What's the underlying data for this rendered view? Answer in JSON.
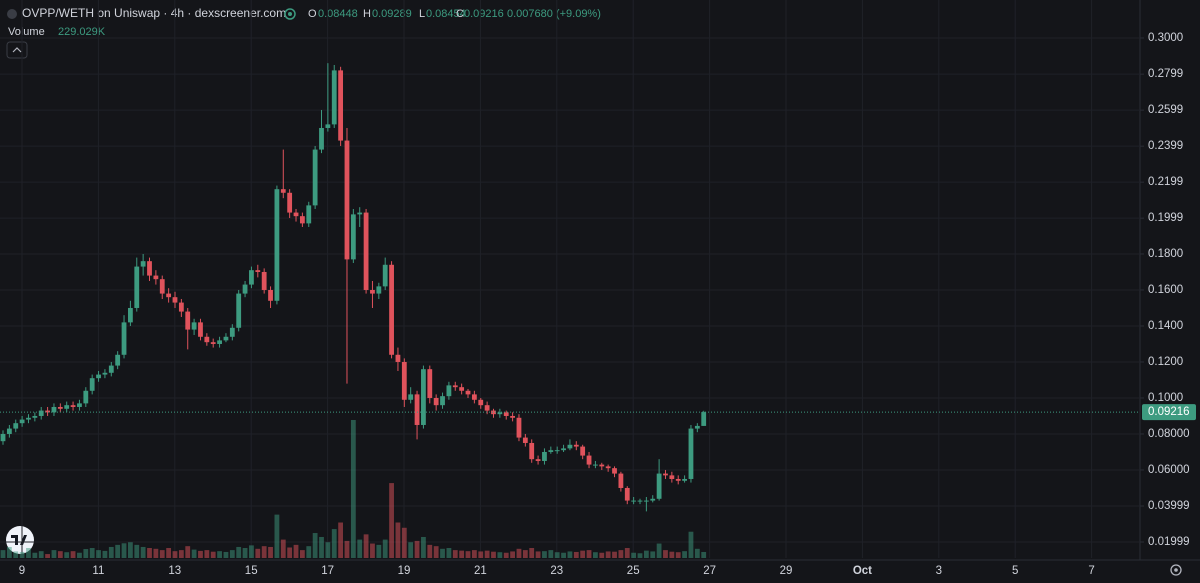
{
  "chart_data": {
    "type": "candlestick",
    "title": "OVPP/WETH on Uniswap · 4h · dexscreener.com",
    "ohlc_labels": [
      "O",
      "H",
      "L",
      "C"
    ],
    "change_label": "0.007680 (+9.09%)",
    "volume_title": "Volume",
    "volume_label": "229.029K",
    "up_color": "#3d9b80",
    "down_color": "#e0535c",
    "ylim": [
      0.0111,
      0.3211
    ],
    "yticks": [
      {
        "value": 0.3,
        "label": "0.3000"
      },
      0.2799,
      0.2599,
      0.2399,
      0.2199,
      0.1999,
      {
        "value": 0.18,
        "label": "0.1800"
      },
      {
        "value": 0.16,
        "label": "0.1600"
      },
      {
        "value": 0.14,
        "label": "0.1400"
      },
      {
        "value": 0.12,
        "label": "0.1200"
      },
      {
        "value": 0.1,
        "label": "0.1000"
      },
      {
        "value": 0.08,
        "label": "0.08000"
      },
      {
        "value": 0.06,
        "label": "0.06000"
      },
      0.03999,
      0.01999
    ],
    "grid": true,
    "x_labels": [
      "9",
      "11",
      "13",
      "15",
      "17",
      "19",
      "21",
      "23",
      "25",
      "27",
      "29",
      "Oct",
      "3",
      "5",
      "7"
    ],
    "candles": [
      [
        0.076,
        0.082,
        0.074,
        0.08
      ],
      [
        0.08,
        0.085,
        0.078,
        0.083
      ],
      [
        0.083,
        0.088,
        0.081,
        0.086
      ],
      [
        0.086,
        0.09,
        0.084,
        0.088
      ],
      [
        0.088,
        0.091,
        0.086,
        0.089
      ],
      [
        0.089,
        0.092,
        0.087,
        0.09
      ],
      [
        0.09,
        0.095,
        0.088,
        0.093
      ],
      [
        0.093,
        0.095,
        0.09,
        0.092
      ],
      [
        0.092,
        0.097,
        0.09,
        0.095
      ],
      [
        0.095,
        0.097,
        0.092,
        0.094
      ],
      [
        0.094,
        0.098,
        0.092,
        0.096
      ],
      [
        0.096,
        0.098,
        0.093,
        0.095
      ],
      [
        0.095,
        0.099,
        0.093,
        0.097
      ],
      [
        0.097,
        0.106,
        0.095,
        0.104
      ],
      [
        0.104,
        0.113,
        0.102,
        0.111
      ],
      [
        0.111,
        0.115,
        0.109,
        0.113
      ],
      [
        0.113,
        0.116,
        0.111,
        0.114
      ],
      [
        0.114,
        0.12,
        0.112,
        0.118
      ],
      [
        0.118,
        0.126,
        0.116,
        0.124
      ],
      [
        0.124,
        0.146,
        0.122,
        0.142
      ],
      [
        0.142,
        0.154,
        0.14,
        0.15
      ],
      [
        0.15,
        0.178,
        0.148,
        0.173
      ],
      [
        0.173,
        0.18,
        0.168,
        0.176
      ],
      [
        0.176,
        0.178,
        0.165,
        0.168
      ],
      [
        0.168,
        0.171,
        0.163,
        0.166
      ],
      [
        0.166,
        0.168,
        0.155,
        0.158
      ],
      [
        0.158,
        0.161,
        0.153,
        0.156
      ],
      [
        0.156,
        0.159,
        0.15,
        0.153
      ],
      [
        0.153,
        0.155,
        0.145,
        0.148
      ],
      [
        0.148,
        0.15,
        0.127,
        0.138
      ],
      [
        0.138,
        0.144,
        0.135,
        0.142
      ],
      [
        0.142,
        0.144,
        0.132,
        0.134
      ],
      [
        0.134,
        0.136,
        0.129,
        0.131
      ],
      [
        0.131,
        0.133,
        0.128,
        0.13
      ],
      [
        0.13,
        0.134,
        0.128,
        0.132
      ],
      [
        0.132,
        0.136,
        0.131,
        0.134
      ],
      [
        0.134,
        0.141,
        0.132,
        0.139
      ],
      [
        0.139,
        0.16,
        0.137,
        0.158
      ],
      [
        0.158,
        0.165,
        0.156,
        0.163
      ],
      [
        0.163,
        0.173,
        0.161,
        0.171
      ],
      [
        0.171,
        0.174,
        0.167,
        0.17
      ],
      [
        0.17,
        0.172,
        0.158,
        0.16
      ],
      [
        0.16,
        0.162,
        0.15,
        0.154
      ],
      [
        0.154,
        0.218,
        0.152,
        0.216
      ],
      [
        0.216,
        0.238,
        0.211,
        0.214
      ],
      [
        0.214,
        0.216,
        0.2,
        0.203
      ],
      [
        0.203,
        0.205,
        0.198,
        0.201
      ],
      [
        0.201,
        0.203,
        0.195,
        0.197
      ],
      [
        0.197,
        0.209,
        0.195,
        0.207
      ],
      [
        0.207,
        0.24,
        0.205,
        0.238
      ],
      [
        0.238,
        0.26,
        0.236,
        0.25
      ],
      [
        0.25,
        0.286,
        0.248,
        0.252
      ],
      [
        0.252,
        0.285,
        0.25,
        0.282
      ],
      [
        0.282,
        0.284,
        0.24,
        0.243
      ],
      [
        0.243,
        0.25,
        0.108,
        0.177
      ],
      [
        0.177,
        0.205,
        0.175,
        0.202
      ],
      [
        0.202,
        0.206,
        0.195,
        0.203
      ],
      [
        0.203,
        0.205,
        0.158,
        0.16
      ],
      [
        0.16,
        0.165,
        0.15,
        0.158
      ],
      [
        0.158,
        0.164,
        0.155,
        0.162
      ],
      [
        0.162,
        0.178,
        0.16,
        0.174
      ],
      [
        0.174,
        0.176,
        0.122,
        0.124
      ],
      [
        0.124,
        0.128,
        0.115,
        0.12
      ],
      [
        0.12,
        0.122,
        0.095,
        0.099
      ],
      [
        0.099,
        0.106,
        0.097,
        0.102
      ],
      [
        0.102,
        0.104,
        0.077,
        0.085
      ],
      [
        0.085,
        0.118,
        0.083,
        0.116
      ],
      [
        0.116,
        0.118,
        0.097,
        0.1
      ],
      [
        0.1,
        0.102,
        0.093,
        0.096
      ],
      [
        0.096,
        0.103,
        0.094,
        0.101
      ],
      [
        0.101,
        0.109,
        0.099,
        0.107
      ],
      [
        0.107,
        0.109,
        0.104,
        0.106
      ],
      [
        0.106,
        0.108,
        0.102,
        0.104
      ],
      [
        0.104,
        0.105,
        0.1,
        0.102
      ],
      [
        0.102,
        0.104,
        0.097,
        0.099
      ],
      [
        0.099,
        0.1,
        0.094,
        0.096
      ],
      [
        0.096,
        0.098,
        0.091,
        0.093
      ],
      [
        0.093,
        0.094,
        0.089,
        0.091
      ],
      [
        0.091,
        0.094,
        0.089,
        0.092
      ],
      [
        0.092,
        0.093,
        0.088,
        0.09
      ],
      [
        0.09,
        0.092,
        0.087,
        0.089
      ],
      [
        0.089,
        0.091,
        0.076,
        0.078
      ],
      [
        0.078,
        0.08,
        0.073,
        0.075
      ],
      [
        0.075,
        0.077,
        0.064,
        0.066
      ],
      [
        0.066,
        0.068,
        0.063,
        0.065
      ],
      [
        0.065,
        0.072,
        0.063,
        0.07
      ],
      [
        0.07,
        0.073,
        0.069,
        0.071
      ],
      [
        0.071,
        0.073,
        0.069,
        0.071
      ],
      [
        0.071,
        0.074,
        0.07,
        0.072
      ],
      [
        0.072,
        0.077,
        0.071,
        0.074
      ],
      [
        0.074,
        0.076,
        0.071,
        0.073
      ],
      [
        0.073,
        0.074,
        0.066,
        0.068
      ],
      [
        0.068,
        0.07,
        0.061,
        0.063
      ],
      [
        0.063,
        0.065,
        0.061,
        0.063
      ],
      [
        0.063,
        0.064,
        0.06,
        0.062
      ],
      [
        0.062,
        0.063,
        0.059,
        0.061
      ],
      [
        0.061,
        0.062,
        0.056,
        0.058
      ],
      [
        0.058,
        0.059,
        0.048,
        0.05
      ],
      [
        0.05,
        0.051,
        0.041,
        0.043
      ],
      [
        0.043,
        0.045,
        0.041,
        0.043
      ],
      [
        0.043,
        0.044,
        0.041,
        0.043
      ],
      [
        0.043,
        0.045,
        0.037,
        0.043
      ],
      [
        0.043,
        0.046,
        0.042,
        0.044
      ],
      [
        0.044,
        0.066,
        0.043,
        0.058
      ],
      [
        0.058,
        0.06,
        0.055,
        0.057
      ],
      [
        0.057,
        0.059,
        0.053,
        0.055
      ],
      [
        0.055,
        0.057,
        0.052,
        0.054
      ],
      [
        0.054,
        0.057,
        0.053,
        0.055
      ],
      [
        0.055,
        0.085,
        0.053,
        0.083
      ],
      [
        0.083,
        0.086,
        0.081,
        0.08448
      ],
      [
        0.08448,
        0.09289,
        0.08454,
        0.09216
      ]
    ],
    "volumes": [
      300000,
      420000,
      250000,
      230000,
      380000,
      200000,
      260000,
      150000,
      300000,
      260000,
      220000,
      260000,
      200000,
      340000,
      380000,
      300000,
      270000,
      420000,
      500000,
      560000,
      600000,
      500000,
      420000,
      380000,
      350000,
      300000,
      380000,
      260000,
      300000,
      450000,
      320000,
      270000,
      300000,
      240000,
      260000,
      230000,
      300000,
      420000,
      380000,
      480000,
      350000,
      450000,
      420000,
      1650000,
      700000,
      400000,
      500000,
      300000,
      450000,
      950000,
      800000,
      600000,
      1100000,
      1350000,
      650000,
      5250000,
      700000,
      900000,
      550000,
      500000,
      700000,
      2850000,
      1350000,
      1150000,
      600000,
      650000,
      800000,
      500000,
      450000,
      350000,
      380000,
      300000,
      280000,
      260000,
      300000,
      250000,
      280000,
      240000,
      220000,
      200000,
      250000,
      350000,
      300000,
      380000,
      250000,
      260000,
      300000,
      220000,
      200000,
      250000,
      230000,
      280000,
      300000,
      220000,
      200000,
      250000,
      240000,
      300000,
      380000,
      200000,
      180000,
      280000,
      250000,
      550000,
      300000,
      240000,
      220000,
      260000,
      1000000,
      350000,
      229029
    ]
  }
}
